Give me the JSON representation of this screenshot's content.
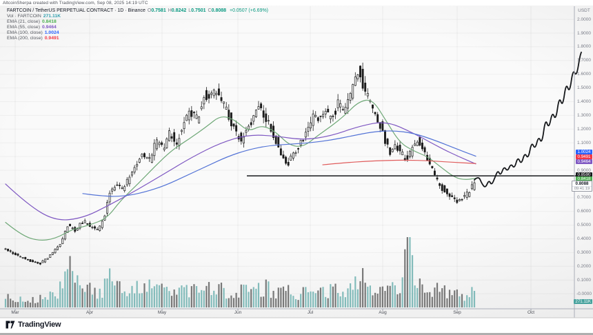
{
  "attribution": "AltcoinSherpa created with TradingView.com, Sep 08, 2025 14:19 UTC",
  "header": {
    "symbol_title": "FARTCOIN / TetherUS PERPETUAL CONTRACT · 1D · Binance",
    "ohlc": [
      {
        "k": "O",
        "v": "0.7581"
      },
      {
        "k": "H",
        "v": "0.8242"
      },
      {
        "k": "L",
        "v": "0.7501"
      },
      {
        "k": "C",
        "v": "0.8088"
      }
    ],
    "change": "+0.0507 (+6.69%)",
    "up_color": "#089981"
  },
  "indicators": [
    {
      "label": "Vol · FARTCOIN",
      "value": "271.11K",
      "color": "#2f9fae"
    },
    {
      "label": "EMA (21, close)",
      "value": "0.8418",
      "color": "#4caf50"
    },
    {
      "label": "EMA (55, close)",
      "value": "0.9464",
      "color": "#7e57c2"
    },
    {
      "label": "EMA (100, close)",
      "value": "1.0024",
      "color": "#2962ff"
    },
    {
      "label": "EMA (200, close)",
      "value": "0.9491",
      "color": "#f23645"
    }
  ],
  "y_axis": {
    "unit": "USDT",
    "ticks": [
      {
        "price": 2.0,
        "label": "2.0000"
      },
      {
        "price": 1.9,
        "label": "1.9000"
      },
      {
        "price": 1.8,
        "label": "1.8000"
      },
      {
        "price": 1.7,
        "label": "1.7000"
      },
      {
        "price": 1.6,
        "label": "1.6000"
      },
      {
        "price": 1.5,
        "label": "1.5000"
      },
      {
        "price": 1.4,
        "label": "1.4000"
      },
      {
        "price": 1.3,
        "label": "1.3000"
      },
      {
        "price": 1.2,
        "label": "1.2000"
      },
      {
        "price": 1.1,
        "label": "1.1000"
      },
      {
        "price": 0.9,
        "label": "0.9000"
      },
      {
        "price": 0.7,
        "label": "0.7000"
      },
      {
        "price": 0.6,
        "label": "0.6000"
      },
      {
        "price": 0.5,
        "label": "0.5000"
      },
      {
        "price": 0.4,
        "label": "0.4000"
      },
      {
        "price": 0.3,
        "label": "0.3000"
      },
      {
        "price": 0.2,
        "label": "0.2000"
      },
      {
        "price": 0.1,
        "label": "0.1000"
      },
      {
        "price": 0.0,
        "label": "-0.0000"
      }
    ]
  },
  "price_labels": {
    "ema100": {
      "value": "1.0024",
      "bg": "#2962ff"
    },
    "ema200": {
      "value": "0.9491",
      "bg": "#f23645"
    },
    "ema55": {
      "value": "0.9464",
      "bg": "#7e57c2"
    },
    "hline": {
      "value": "0.8590",
      "bg": "#17191c"
    },
    "ema21": {
      "value": "0.8418",
      "bg": "#4caf50"
    },
    "last": {
      "value": "0.8088",
      "countdown": "09:41:19"
    },
    "volume": {
      "value": "271.11K",
      "bg": "#47a29d"
    }
  },
  "logo": {
    "text": "TradingView"
  },
  "chart_data": {
    "type": "candlestick",
    "title": "FARTCOIN/USDT Perpetual Contract, 1D, Binance",
    "y_range": [
      0.0,
      2.05
    ],
    "y_tick_step": 0.1,
    "x_months": [
      "Mar",
      "Apr",
      "May",
      "Jun",
      "Jul",
      "Aug",
      "Sep",
      "Oct"
    ],
    "month_x": [
      22,
      130,
      235,
      345,
      450,
      555,
      663,
      770
    ],
    "last_bar": {
      "open": 0.7581,
      "high": 0.8242,
      "low": 0.7501,
      "close": 0.8088,
      "change": 0.0507,
      "change_pct": 6.69,
      "volume": "271.11K"
    },
    "support_line": {
      "price": 0.859,
      "x_start": 358,
      "x_end": 845
    },
    "candles_x_range": [
      8,
      688
    ],
    "price_close_anchors": [
      [
        8,
        0.33
      ],
      [
        25,
        0.28
      ],
      [
        45,
        0.24
      ],
      [
        60,
        0.22
      ],
      [
        75,
        0.28
      ],
      [
        90,
        0.37
      ],
      [
        100,
        0.5
      ],
      [
        110,
        0.46
      ],
      [
        122,
        0.53
      ],
      [
        133,
        0.49
      ],
      [
        143,
        0.46
      ],
      [
        152,
        0.54
      ],
      [
        160,
        0.73
      ],
      [
        170,
        0.8
      ],
      [
        178,
        0.76
      ],
      [
        188,
        0.83
      ],
      [
        198,
        0.92
      ],
      [
        208,
        1.02
      ],
      [
        218,
        0.96
      ],
      [
        228,
        1.12
      ],
      [
        238,
        1.06
      ],
      [
        248,
        1.18
      ],
      [
        258,
        1.1
      ],
      [
        268,
        1.25
      ],
      [
        278,
        1.32
      ],
      [
        288,
        1.27
      ],
      [
        298,
        1.47
      ],
      [
        306,
        1.42
      ],
      [
        315,
        1.48
      ],
      [
        325,
        1.38
      ],
      [
        335,
        1.28
      ],
      [
        343,
        1.18
      ],
      [
        352,
        1.12
      ],
      [
        360,
        1.2
      ],
      [
        370,
        1.3
      ],
      [
        378,
        1.37
      ],
      [
        386,
        1.3
      ],
      [
        394,
        1.22
      ],
      [
        402,
        1.12
      ],
      [
        412,
        1.0
      ],
      [
        420,
        0.95
      ],
      [
        430,
        1.04
      ],
      [
        440,
        1.12
      ],
      [
        450,
        1.22
      ],
      [
        458,
        1.3
      ],
      [
        466,
        1.26
      ],
      [
        474,
        1.33
      ],
      [
        482,
        1.27
      ],
      [
        492,
        1.38
      ],
      [
        500,
        1.33
      ],
      [
        508,
        1.42
      ],
      [
        516,
        1.58
      ],
      [
        522,
        1.65
      ],
      [
        528,
        1.52
      ],
      [
        536,
        1.42
      ],
      [
        544,
        1.33
      ],
      [
        552,
        1.25
      ],
      [
        560,
        1.12
      ],
      [
        568,
        1.03
      ],
      [
        576,
        1.08
      ],
      [
        584,
        1.02
      ],
      [
        592,
        0.97
      ],
      [
        600,
        1.08
      ],
      [
        607,
        1.13
      ],
      [
        614,
        1.06
      ],
      [
        621,
        0.97
      ],
      [
        629,
        0.9
      ],
      [
        636,
        0.82
      ],
      [
        643,
        0.77
      ],
      [
        650,
        0.73
      ],
      [
        658,
        0.7
      ],
      [
        666,
        0.675
      ],
      [
        674,
        0.71
      ],
      [
        681,
        0.73
      ],
      [
        688,
        0.8088
      ]
    ],
    "volume_height_anchors": [
      [
        8,
        18
      ],
      [
        30,
        14
      ],
      [
        50,
        12
      ],
      [
        70,
        15
      ],
      [
        90,
        30
      ],
      [
        100,
        62
      ],
      [
        110,
        40
      ],
      [
        122,
        35
      ],
      [
        133,
        25
      ],
      [
        145,
        20
      ],
      [
        160,
        45
      ],
      [
        172,
        30
      ],
      [
        185,
        25
      ],
      [
        198,
        30
      ],
      [
        208,
        38
      ],
      [
        220,
        26
      ],
      [
        232,
        30
      ],
      [
        245,
        25
      ],
      [
        258,
        22
      ],
      [
        270,
        28
      ],
      [
        282,
        24
      ],
      [
        298,
        38
      ],
      [
        310,
        30
      ],
      [
        322,
        26
      ],
      [
        335,
        22
      ],
      [
        347,
        25
      ],
      [
        360,
        30
      ],
      [
        372,
        26
      ],
      [
        385,
        32
      ],
      [
        397,
        24
      ],
      [
        410,
        28
      ],
      [
        422,
        22
      ],
      [
        435,
        20
      ],
      [
        448,
        24
      ],
      [
        460,
        28
      ],
      [
        474,
        24
      ],
      [
        488,
        26
      ],
      [
        500,
        22
      ],
      [
        512,
        30
      ],
      [
        522,
        48
      ],
      [
        534,
        30
      ],
      [
        546,
        24
      ],
      [
        558,
        30
      ],
      [
        570,
        26
      ],
      [
        582,
        28
      ],
      [
        592,
        100
      ],
      [
        602,
        40
      ],
      [
        612,
        30
      ],
      [
        622,
        26
      ],
      [
        632,
        28
      ],
      [
        642,
        24
      ],
      [
        652,
        20
      ],
      [
        662,
        22
      ],
      [
        672,
        18
      ],
      [
        682,
        20
      ],
      [
        688,
        24
      ]
    ],
    "emas": [
      {
        "period": 21,
        "color": "#6fa877",
        "last_value": 0.8418,
        "points": [
          [
            8,
            0.52
          ],
          [
            30,
            0.43
          ],
          [
            55,
            0.385
          ],
          [
            80,
            0.4
          ],
          [
            105,
            0.47
          ],
          [
            130,
            0.5
          ],
          [
            155,
            0.55
          ],
          [
            175,
            0.68
          ],
          [
            200,
            0.8
          ],
          [
            225,
            0.93
          ],
          [
            250,
            1.05
          ],
          [
            275,
            1.13
          ],
          [
            300,
            1.22
          ],
          [
            320,
            1.3
          ],
          [
            340,
            1.27
          ],
          [
            360,
            1.18
          ],
          [
            380,
            1.23
          ],
          [
            400,
            1.18
          ],
          [
            420,
            1.08
          ],
          [
            440,
            1.07
          ],
          [
            460,
            1.15
          ],
          [
            480,
            1.22
          ],
          [
            500,
            1.3
          ],
          [
            520,
            1.4
          ],
          [
            540,
            1.42
          ],
          [
            560,
            1.26
          ],
          [
            580,
            1.1
          ],
          [
            600,
            1.04
          ],
          [
            620,
            1.0
          ],
          [
            640,
            0.92
          ],
          [
            660,
            0.845
          ],
          [
            675,
            0.83
          ],
          [
            690,
            0.8418
          ]
        ]
      },
      {
        "period": 55,
        "color": "#7e57c2",
        "last_value": 0.9464,
        "points": [
          [
            8,
            0.8
          ],
          [
            40,
            0.65
          ],
          [
            80,
            0.53
          ],
          [
            120,
            0.55
          ],
          [
            160,
            0.65
          ],
          [
            200,
            0.76
          ],
          [
            240,
            0.88
          ],
          [
            280,
            1.0
          ],
          [
            320,
            1.1
          ],
          [
            360,
            1.16
          ],
          [
            400,
            1.15
          ],
          [
            440,
            1.12
          ],
          [
            480,
            1.15
          ],
          [
            520,
            1.22
          ],
          [
            560,
            1.26
          ],
          [
            600,
            1.17
          ],
          [
            640,
            1.06
          ],
          [
            665,
            1.0
          ],
          [
            690,
            0.9464
          ]
        ]
      },
      {
        "period": 100,
        "color": "#5272d6",
        "last_value": 1.0024,
        "points": [
          [
            120,
            0.73
          ],
          [
            150,
            0.71
          ],
          [
            180,
            0.71
          ],
          [
            210,
            0.74
          ],
          [
            240,
            0.79
          ],
          [
            270,
            0.86
          ],
          [
            300,
            0.93
          ],
          [
            330,
            1.0
          ],
          [
            360,
            1.05
          ],
          [
            390,
            1.08
          ],
          [
            420,
            1.09
          ],
          [
            450,
            1.1
          ],
          [
            480,
            1.12
          ],
          [
            510,
            1.15
          ],
          [
            540,
            1.18
          ],
          [
            570,
            1.19
          ],
          [
            600,
            1.17
          ],
          [
            630,
            1.12
          ],
          [
            660,
            1.06
          ],
          [
            690,
            1.0024
          ]
        ]
      },
      {
        "period": 200,
        "color": "#e05c5c",
        "last_value": 0.9491,
        "points": [
          [
            468,
            0.94
          ],
          [
            500,
            0.955
          ],
          [
            530,
            0.965
          ],
          [
            560,
            0.972
          ],
          [
            590,
            0.974
          ],
          [
            620,
            0.97
          ],
          [
            650,
            0.96
          ],
          [
            690,
            0.9491
          ]
        ]
      }
    ],
    "projection": [
      [
        688,
        0.83
      ],
      [
        694,
        0.86
      ],
      [
        699,
        0.8
      ],
      [
        704,
        0.77
      ],
      [
        709,
        0.83
      ],
      [
        713,
        0.79
      ],
      [
        718,
        0.85
      ],
      [
        722,
        0.9
      ],
      [
        726,
        0.86
      ],
      [
        731,
        0.93
      ],
      [
        736,
        0.89
      ],
      [
        741,
        0.95
      ],
      [
        746,
        0.91
      ],
      [
        751,
        1.0
      ],
      [
        756,
        0.94
      ],
      [
        761,
        1.03
      ],
      [
        766,
        0.98
      ],
      [
        771,
        1.11
      ],
      [
        776,
        1.05
      ],
      [
        781,
        1.15
      ],
      [
        786,
        1.09
      ],
      [
        791,
        1.28
      ],
      [
        796,
        1.2
      ],
      [
        801,
        1.33
      ],
      [
        806,
        1.26
      ],
      [
        811,
        1.44
      ],
      [
        816,
        1.36
      ],
      [
        821,
        1.54
      ],
      [
        826,
        1.46
      ],
      [
        831,
        1.64
      ],
      [
        836,
        1.58
      ],
      [
        841,
        1.73
      ],
      [
        843,
        1.76
      ]
    ]
  }
}
